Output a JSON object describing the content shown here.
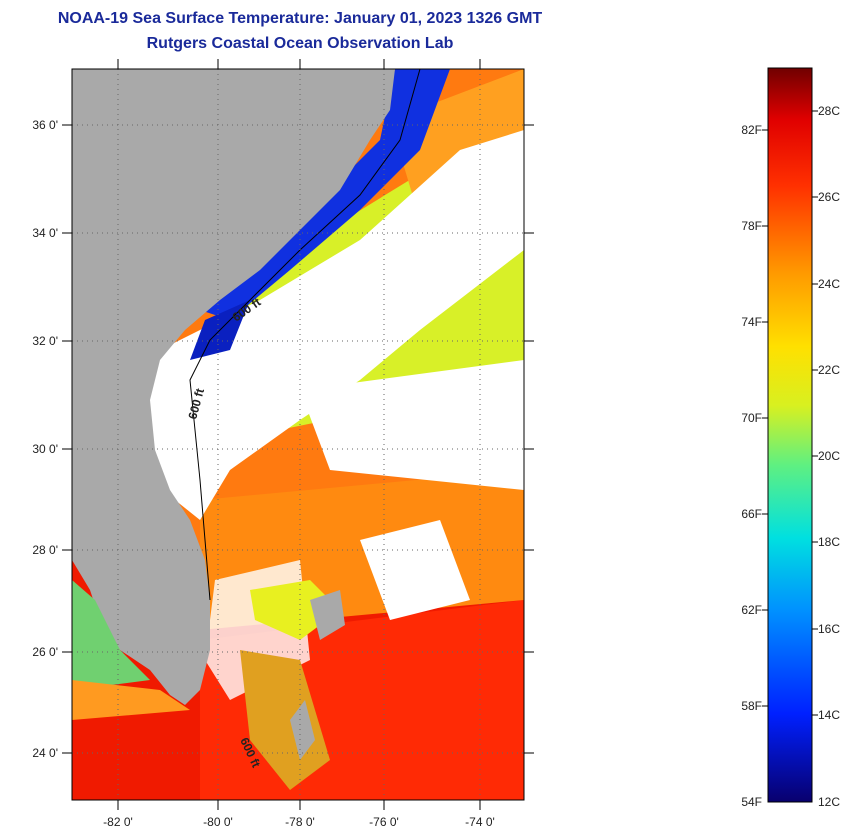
{
  "title": {
    "line1": "NOAA-19 Sea Surface Temperature:  January 01, 2023 1326 GMT",
    "line2": "Rutgers Coastal Ocean Observation Lab"
  },
  "map": {
    "lat_labels": [
      "36 0'",
      "34 0'",
      "32 0'",
      "30 0'",
      "28 0'",
      "26 0'",
      "24 0'"
    ],
    "lon_labels": [
      "-82 0'",
      "-80 0'",
      "-78 0'",
      "-76 0'",
      "-74 0'"
    ],
    "contour_labels": [
      "600 ft",
      "600 ft",
      "600 ft"
    ]
  },
  "colorbar": {
    "fahrenheit": [
      "82F",
      "78F",
      "74F",
      "70F",
      "66F",
      "62F",
      "58F",
      "54F"
    ],
    "celsius": [
      "28C",
      "26C",
      "24C",
      "22C",
      "20C",
      "18C",
      "16C",
      "14C",
      "12C"
    ]
  },
  "colors": {
    "title": "#1a2a9a",
    "land": "#a9a9a9",
    "cloud": "#ffffff"
  }
}
